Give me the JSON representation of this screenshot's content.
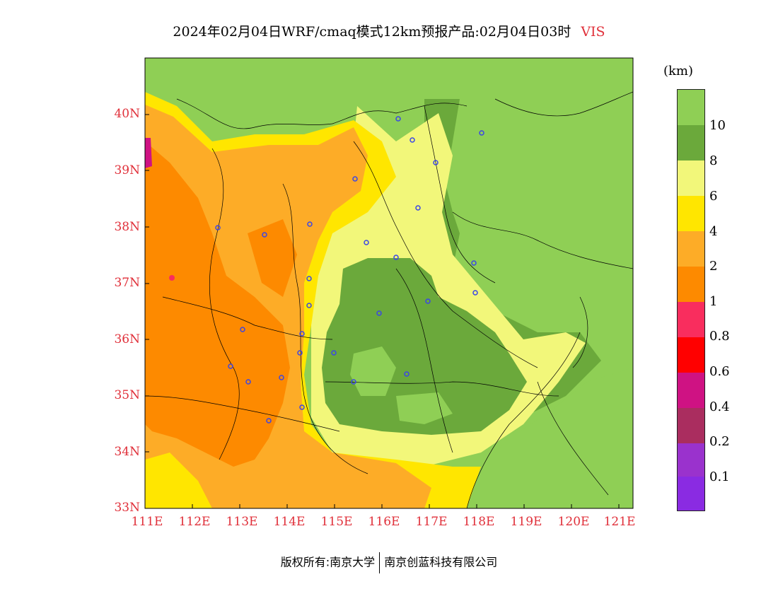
{
  "title": {
    "main": "2024年02月04日WRF/cmaq模式12km预报产品:02月04日03时",
    "variable": "VIS"
  },
  "axes": {
    "lat_labels": [
      "40N",
      "39N",
      "38N",
      "37N",
      "36N",
      "35N",
      "34N",
      "33N"
    ],
    "lon_labels": [
      "111E",
      "112E",
      "113E",
      "114E",
      "115E",
      "116E",
      "117E",
      "118E",
      "119E",
      "120E",
      "121E"
    ],
    "lat_range": [
      33,
      41
    ],
    "lon_range": [
      111,
      121.3
    ]
  },
  "legend": {
    "unit": "(km)",
    "labels": [
      "10",
      "8",
      "6",
      "4",
      "2",
      "1",
      "0.8",
      "0.6",
      "0.4",
      "0.2",
      "0.1"
    ],
    "colors": [
      "#8fcf55",
      "#6ba93b",
      "#f2f77a",
      "#ffe600",
      "#fdac27",
      "#fd8a00",
      "#f92d5e",
      "#ff0000",
      "#cf1283",
      "#aa2d5f",
      "#9a32cd",
      "#8a2be2"
    ]
  },
  "footer": {
    "left": "版权所有:南京大学",
    "right": "南京创蓝科技有限公司"
  },
  "colors": {
    "accent": "#e0303a",
    "city_marker": "#3b46e6"
  }
}
